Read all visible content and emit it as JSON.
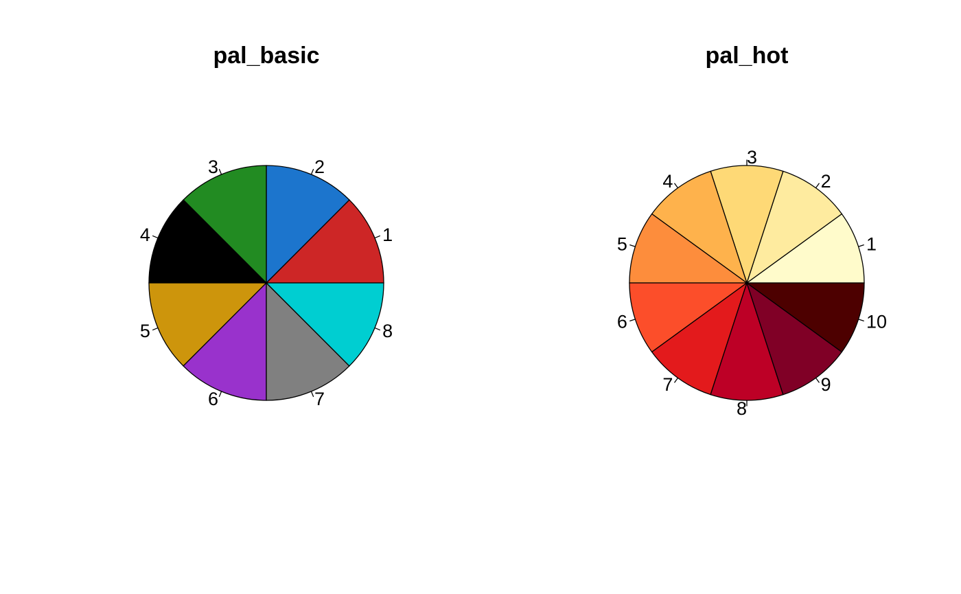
{
  "chart_data": [
    {
      "type": "pie",
      "title": "pal_basic",
      "categories": [
        "1",
        "2",
        "3",
        "4",
        "5",
        "6",
        "7",
        "8"
      ],
      "values": [
        1,
        1,
        1,
        1,
        1,
        1,
        1,
        1
      ],
      "colors": [
        "#CD2626",
        "#1C75CD",
        "#228B22",
        "#000000",
        "#CD950C",
        "#9932CC",
        "#808080",
        "#00CED1"
      ],
      "legend": "none"
    },
    {
      "type": "pie",
      "title": "pal_hot",
      "categories": [
        "1",
        "2",
        "3",
        "4",
        "5",
        "6",
        "7",
        "8",
        "9",
        "10"
      ],
      "values": [
        1,
        1,
        1,
        1,
        1,
        1,
        1,
        1,
        1,
        1
      ],
      "colors": [
        "#FFFBCB",
        "#FEEB9F",
        "#FED976",
        "#FEB24C",
        "#FD8D3C",
        "#FC4E2A",
        "#E31A1C",
        "#BD0026",
        "#800026",
        "#4D0000"
      ],
      "legend": "none"
    }
  ]
}
